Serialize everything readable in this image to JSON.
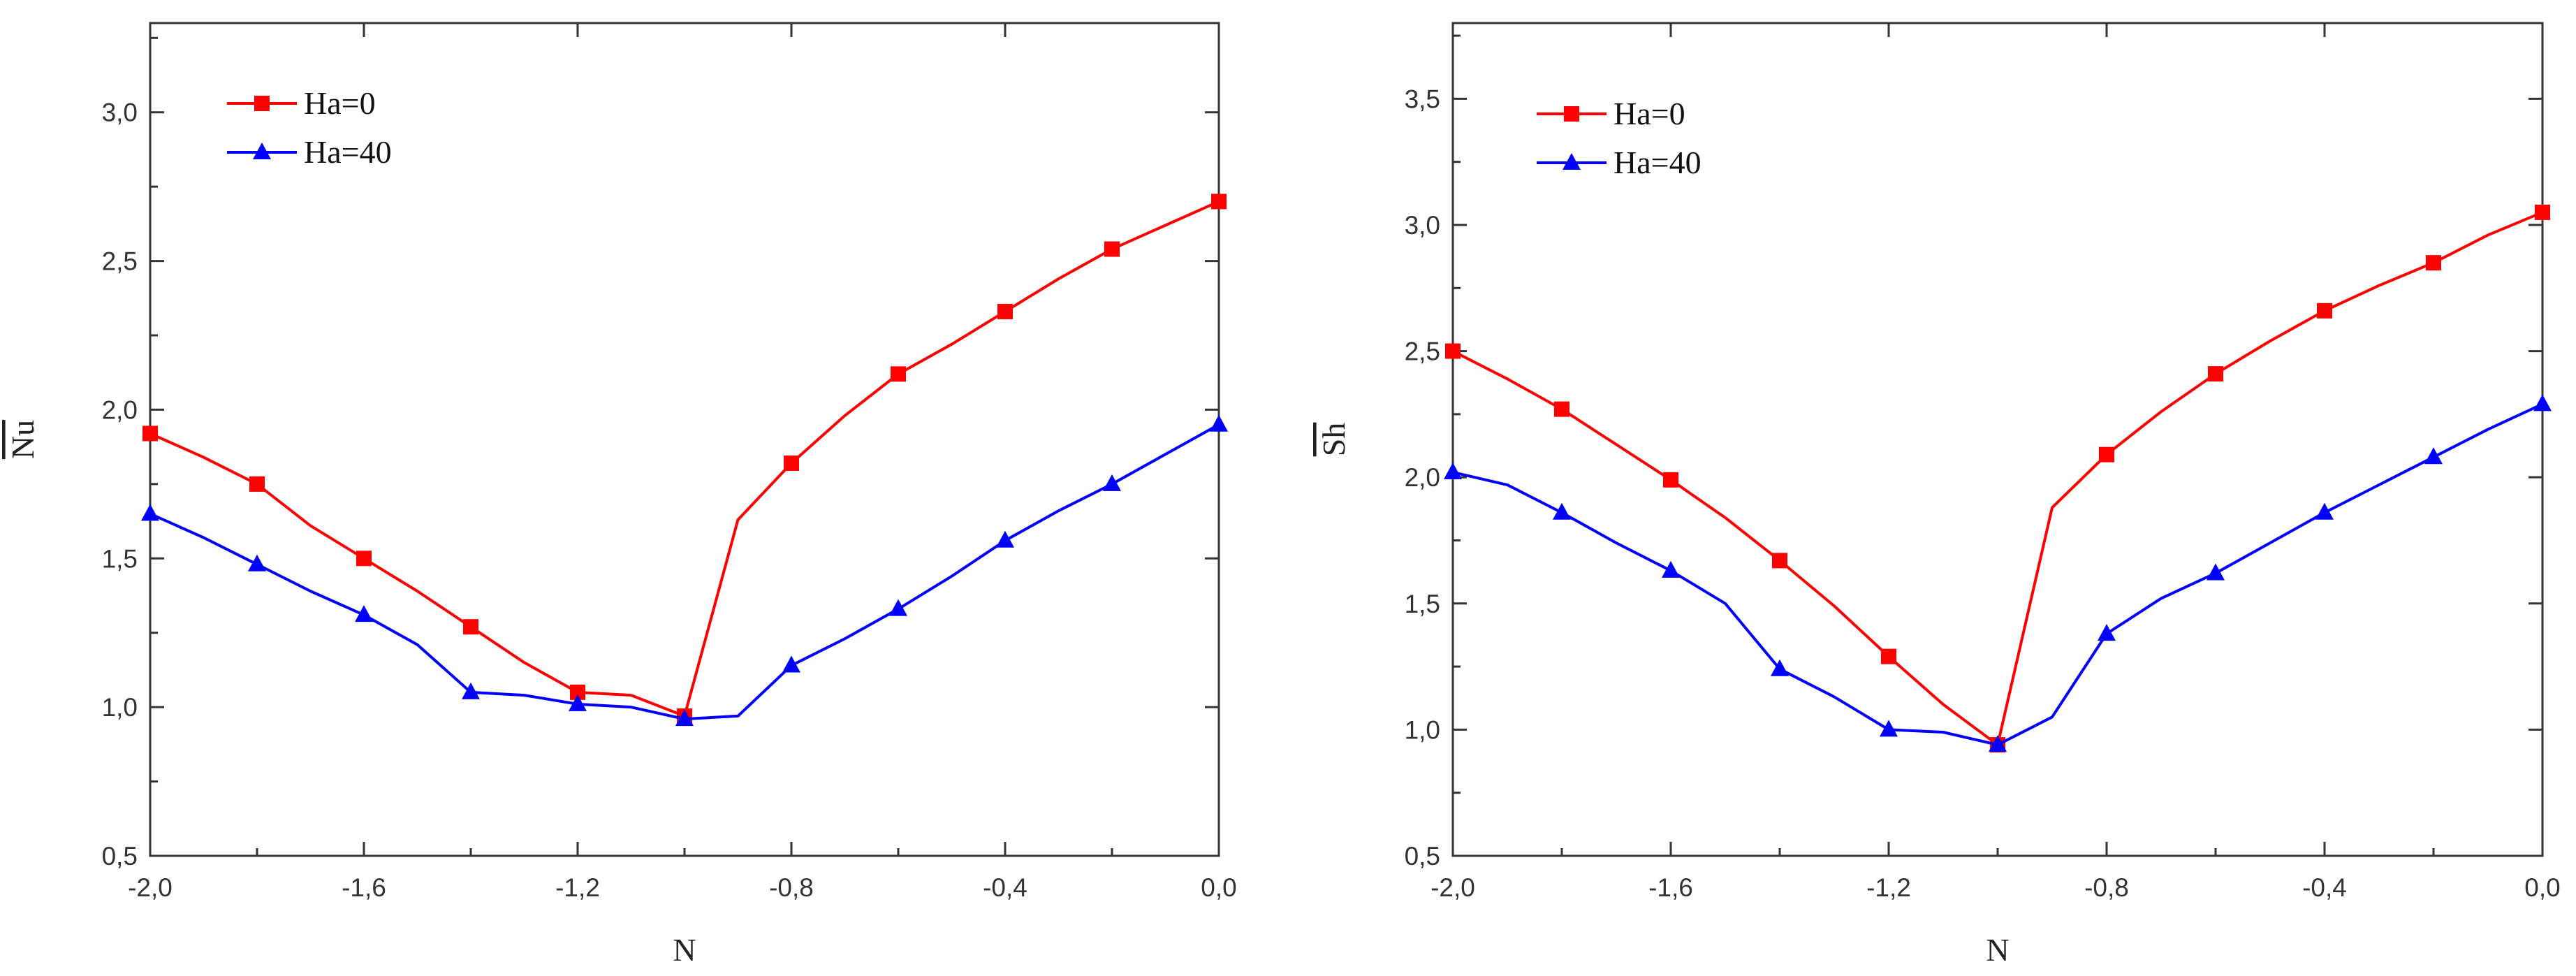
{
  "chart_data": [
    {
      "type": "line",
      "title": "",
      "xlabel": "N",
      "ylabel": "Nu",
      "ylabel_overline": true,
      "xlim": [
        -2.0,
        0.0
      ],
      "ylim": [
        0.5,
        3.3
      ],
      "xticks": [
        -2.0,
        -1.6,
        -1.2,
        -0.8,
        -0.4,
        0.0
      ],
      "xtick_labels": [
        "-2,0",
        "-1,6",
        "-1,2",
        "-0,8",
        "-0,4",
        "0,0"
      ],
      "yticks": [
        0.5,
        1.0,
        1.5,
        2.0,
        2.5,
        3.0
      ],
      "ytick_labels": [
        "0,5",
        "1,0",
        "1,5",
        "2,0",
        "2,5",
        "3,0"
      ],
      "grid": false,
      "legend_position": "top-left",
      "x": [
        -2.0,
        -1.9,
        -1.8,
        -1.7,
        -1.6,
        -1.5,
        -1.4,
        -1.3,
        -1.2,
        -1.1,
        -1.0,
        -0.9,
        -0.8,
        -0.7,
        -0.6,
        -0.5,
        -0.4,
        -0.3,
        -0.2,
        -0.1,
        0.0
      ],
      "marker_x": [
        -2.0,
        -1.8,
        -1.6,
        -1.4,
        -1.2,
        -1.0,
        -0.8,
        -0.6,
        -0.4,
        -0.2,
        0.0
      ],
      "series": [
        {
          "name": "Ha=0",
          "color": "#ff0000",
          "marker": "square",
          "values": [
            1.92,
            1.84,
            1.75,
            1.61,
            1.5,
            1.39,
            1.27,
            1.15,
            1.05,
            1.04,
            0.97,
            1.63,
            1.82,
            1.98,
            2.12,
            2.22,
            2.33,
            2.44,
            2.54,
            2.62,
            2.7
          ]
        },
        {
          "name": "Ha=40",
          "color": "#0000ff",
          "marker": "triangle",
          "values": [
            1.65,
            1.57,
            1.48,
            1.39,
            1.31,
            1.21,
            1.05,
            1.04,
            1.01,
            1.0,
            0.96,
            0.97,
            1.14,
            1.23,
            1.33,
            1.44,
            1.56,
            1.66,
            1.75,
            1.85,
            1.95
          ]
        }
      ]
    },
    {
      "type": "line",
      "title": "",
      "xlabel": "N",
      "ylabel": "Sh",
      "ylabel_overline": true,
      "xlim": [
        -2.0,
        0.0
      ],
      "ylim": [
        0.5,
        3.8
      ],
      "xticks": [
        -2.0,
        -1.6,
        -1.2,
        -0.8,
        -0.4,
        0.0
      ],
      "xtick_labels": [
        "-2,0",
        "-1,6",
        "-1,2",
        "-0,8",
        "-0,4",
        "0,0"
      ],
      "yticks": [
        0.5,
        1.0,
        1.5,
        2.0,
        2.5,
        3.0,
        3.5
      ],
      "ytick_labels": [
        "0,5",
        "1,0",
        "1,5",
        "2,0",
        "2,5",
        "3,0",
        "3,5"
      ],
      "grid": false,
      "legend_position": "top-left",
      "x": [
        -2.0,
        -1.9,
        -1.8,
        -1.7,
        -1.6,
        -1.5,
        -1.4,
        -1.3,
        -1.2,
        -1.1,
        -1.0,
        -0.9,
        -0.8,
        -0.7,
        -0.6,
        -0.5,
        -0.4,
        -0.3,
        -0.2,
        -0.1,
        0.0
      ],
      "marker_x": [
        -2.0,
        -1.8,
        -1.6,
        -1.4,
        -1.2,
        -1.0,
        -0.8,
        -0.6,
        -0.4,
        -0.2,
        0.0
      ],
      "series": [
        {
          "name": "Ha=0",
          "color": "#ff0000",
          "marker": "square",
          "values": [
            2.5,
            2.39,
            2.27,
            2.13,
            1.99,
            1.84,
            1.67,
            1.49,
            1.29,
            1.1,
            0.94,
            1.88,
            2.09,
            2.26,
            2.41,
            2.54,
            2.66,
            2.76,
            2.85,
            2.96,
            3.05
          ]
        },
        {
          "name": "Ha=40",
          "color": "#0000ff",
          "marker": "triangle",
          "values": [
            2.02,
            1.97,
            1.86,
            1.74,
            1.63,
            1.5,
            1.24,
            1.13,
            1.0,
            0.99,
            0.94,
            1.05,
            1.38,
            1.52,
            1.62,
            1.74,
            1.86,
            1.97,
            2.08,
            2.19,
            2.29
          ]
        }
      ]
    }
  ]
}
